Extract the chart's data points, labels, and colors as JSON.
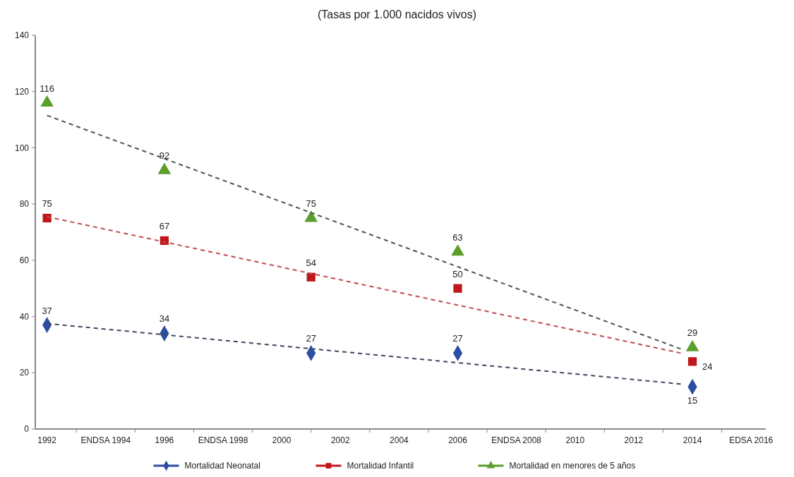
{
  "chart_data": {
    "type": "scatter",
    "title": "(Tasas por 1.000 nacidos vivos)",
    "xlim": [
      1991.6,
      2016.5
    ],
    "xticks": [
      1992,
      {
        "value": 1994,
        "label": "ENDSA 1994"
      },
      1996,
      {
        "value": 1998,
        "label": "ENDSA 1998"
      },
      2000,
      2002,
      2004,
      2006,
      {
        "value": 2008,
        "label": "ENDSA 2008"
      },
      2010,
      2012,
      2014,
      {
        "value": 2016,
        "label": "EDSA 2016"
      }
    ],
    "ylim": [
      0,
      140
    ],
    "yticks": [
      0,
      20,
      40,
      60,
      80,
      100,
      120,
      140
    ],
    "grid": false,
    "legend": "bottom",
    "series": [
      {
        "name": "Mortalidad Neonatal",
        "marker": "diamond",
        "color": "#2b4ea2",
        "x": [
          1992,
          1996,
          2001,
          2006,
          2014
        ],
        "values": [
          37,
          34,
          27,
          27,
          15
        ],
        "value_labels": [
          "37",
          "34",
          "27",
          "27",
          "15"
        ]
      },
      {
        "name": "Mortalidad Infantil",
        "marker": "square",
        "color": "#c0171c",
        "x": [
          1992,
          1996,
          2001,
          2006,
          2014
        ],
        "values": [
          75,
          67,
          54,
          50,
          24
        ],
        "value_labels": [
          "75",
          "67",
          "54",
          "50",
          "24"
        ]
      },
      {
        "name": "Mortalidad en menores de 5 años",
        "marker": "triangle",
        "color": "#5a9e2c",
        "x": [
          1992,
          1996,
          2001,
          2006,
          2014
        ],
        "values": [
          116,
          92,
          75,
          63,
          29
        ],
        "value_labels": [
          "116",
          "92",
          "75",
          "63",
          "29"
        ]
      },
      {
        "type": "line",
        "marker": "none",
        "line_style": "dashed",
        "color": "#3d4a5c",
        "x": [
          1992,
          2013.6
        ],
        "values": [
          37.5,
          16
        ]
      },
      {
        "type": "line",
        "marker": "none",
        "line_style": "dashed",
        "color": "#c24a50",
        "x": [
          1992,
          2013.6
        ],
        "values": [
          75.5,
          27
        ]
      },
      {
        "type": "line",
        "marker": "none",
        "line_style": "dashed",
        "color": "#48564c",
        "x": [
          1992,
          2013.6
        ],
        "values": [
          111.5,
          28.5
        ]
      }
    ]
  }
}
